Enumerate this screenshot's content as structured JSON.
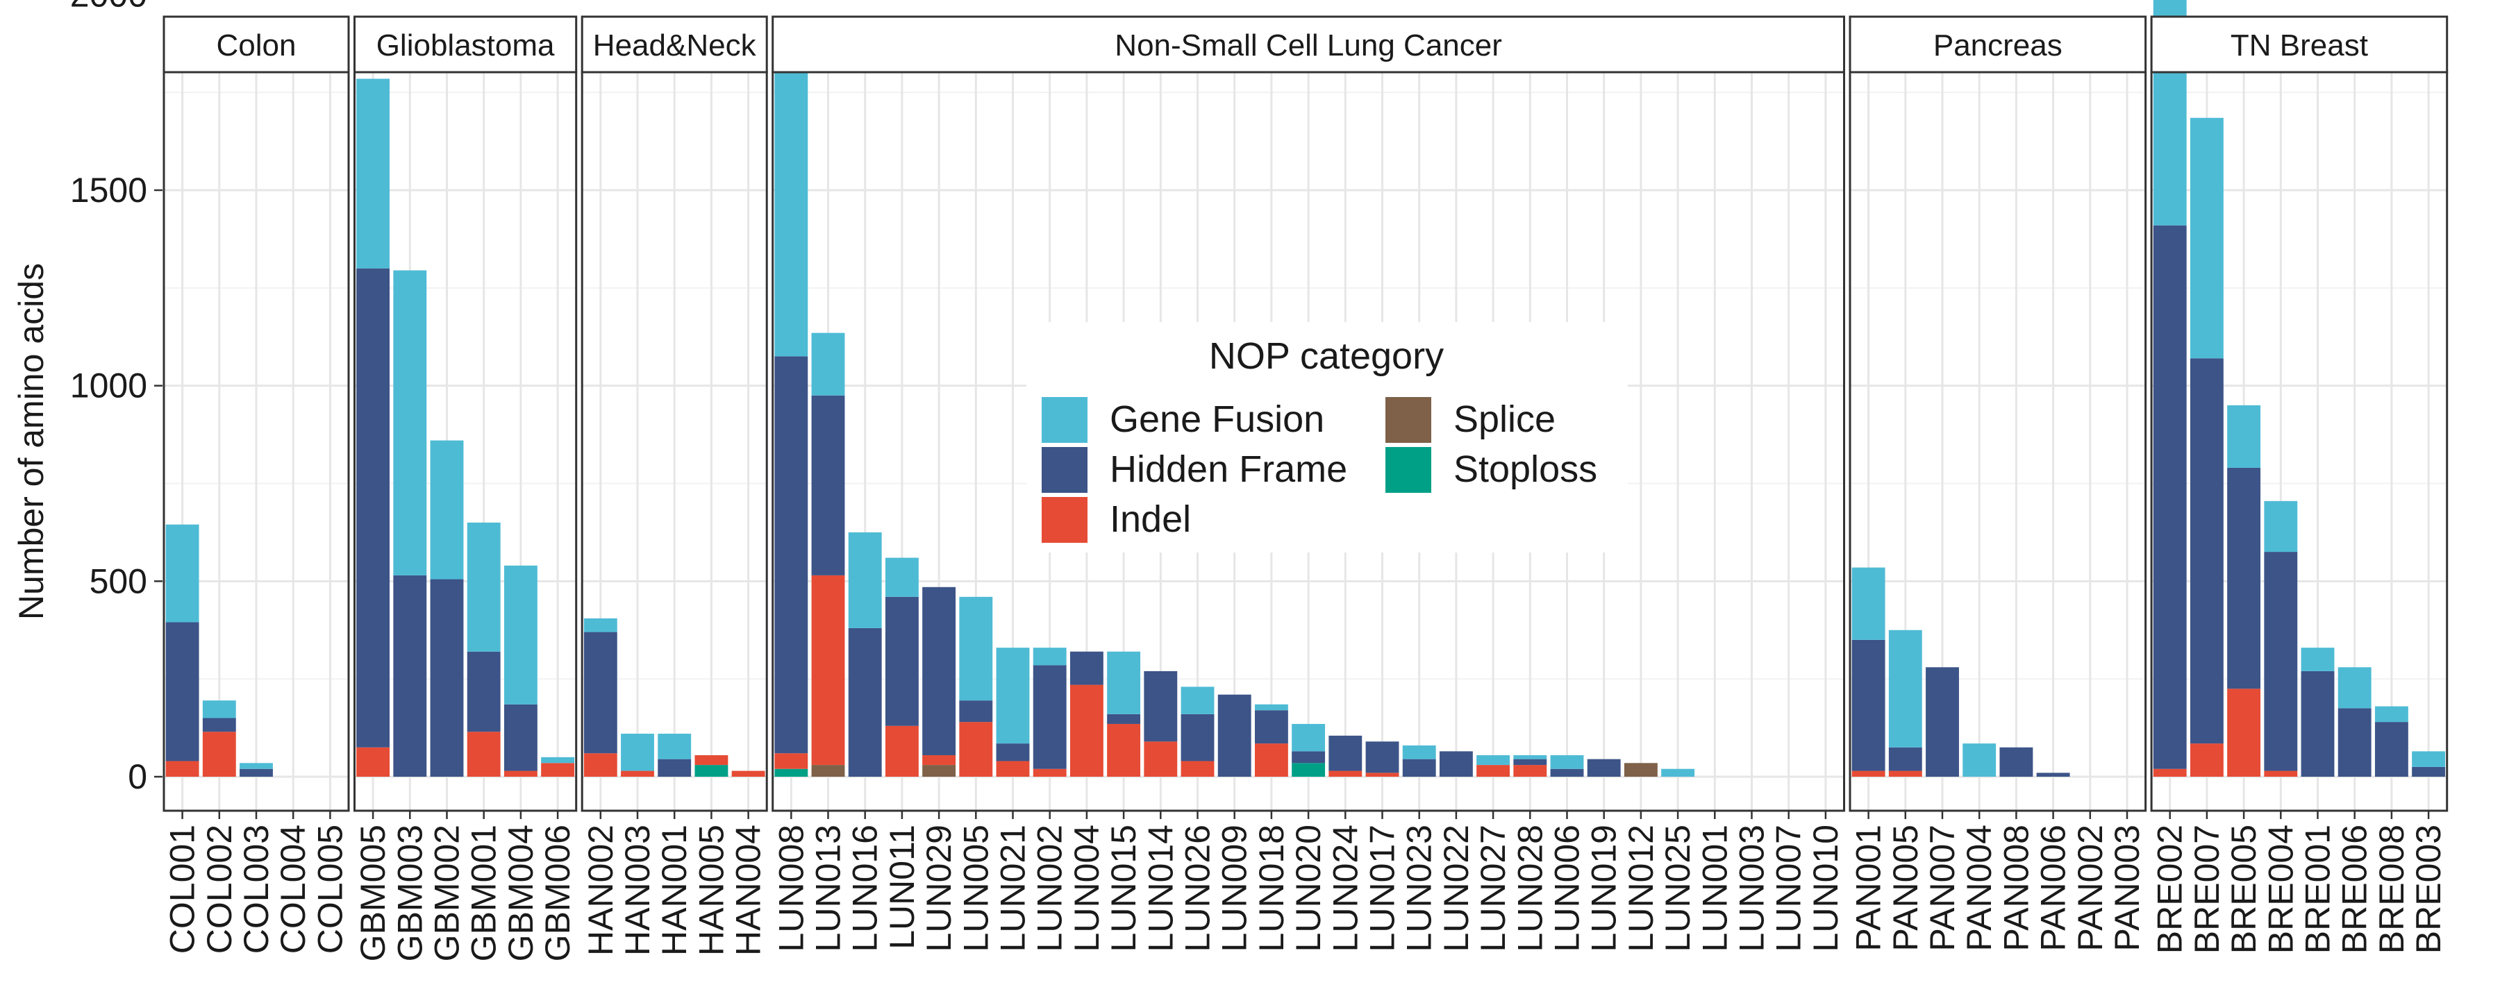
{
  "chart_data": {
    "type": "bar",
    "stacked": true,
    "faceted": true,
    "ylabel": "Number of amino acids",
    "xlabel": "",
    "ylim": [
      -100,
      2400
    ],
    "yticks": [
      0,
      500,
      1000,
      1500,
      2000
    ],
    "grid": true,
    "legend": {
      "title": "NOP category",
      "position": "top-center",
      "items": [
        {
          "key": "gene_fusion",
          "label": "Gene Fusion",
          "color": "#4EBBD5"
        },
        {
          "key": "hidden_frame",
          "label": "Hidden Frame",
          "color": "#3C5488"
        },
        {
          "key": "indel",
          "label": "Indel",
          "color": "#E64B35"
        },
        {
          "key": "splice",
          "label": "Splice",
          "color": "#7E6148"
        },
        {
          "key": "stoploss",
          "label": "Stoploss",
          "color": "#00A087"
        }
      ]
    },
    "facets": [
      {
        "name": "Colon",
        "categories": [
          "COL001",
          "COL002",
          "COL003",
          "COL004",
          "COL005"
        ],
        "series": {
          "indel": [
            40,
            115,
            0,
            0,
            0
          ],
          "hidden_frame": [
            355,
            35,
            20,
            0,
            0
          ],
          "gene_fusion": [
            250,
            45,
            15,
            0,
            0
          ],
          "splice": [
            0,
            0,
            0,
            0,
            0
          ],
          "stoploss": [
            0,
            0,
            0,
            0,
            0
          ]
        }
      },
      {
        "name": "Glioblastoma",
        "categories": [
          "GBM005",
          "GBM003",
          "GBM002",
          "GBM001",
          "GBM004",
          "GBM006"
        ],
        "series": {
          "indel": [
            75,
            0,
            0,
            115,
            15,
            35
          ],
          "hidden_frame": [
            1225,
            515,
            505,
            205,
            170,
            0
          ],
          "gene_fusion": [
            485,
            780,
            355,
            330,
            355,
            15
          ],
          "splice": [
            0,
            0,
            0,
            0,
            0,
            0
          ],
          "stoploss": [
            0,
            0,
            0,
            0,
            0,
            0
          ]
        }
      },
      {
        "name": "Head&Neck",
        "categories": [
          "HAN002",
          "HAN003",
          "HAN001",
          "HAN005",
          "HAN004"
        ],
        "series": {
          "indel": [
            60,
            15,
            0,
            25,
            15
          ],
          "hidden_frame": [
            310,
            0,
            45,
            0,
            0
          ],
          "gene_fusion": [
            35,
            95,
            65,
            0,
            0
          ],
          "splice": [
            0,
            0,
            0,
            0,
            0
          ],
          "stoploss": [
            0,
            0,
            0,
            30,
            0
          ]
        }
      },
      {
        "name": "Non-Small Cell Lung Cancer",
        "categories": [
          "LUN008",
          "LUN013",
          "LUN016",
          "LUN011",
          "LUN029",
          "LUN005",
          "LUN021",
          "LUN002",
          "LUN004",
          "LUN015",
          "LUN014",
          "LUN026",
          "LUN009",
          "LUN018",
          "LUN020",
          "LUN024",
          "LUN017",
          "LUN023",
          "LUN022",
          "LUN027",
          "LUN028",
          "LUN006",
          "LUN019",
          "LUN012",
          "LUN025",
          "LUN001",
          "LUN003",
          "LUN007",
          "LUN010"
        ],
        "series": {
          "indel": [
            40,
            485,
            0,
            130,
            25,
            140,
            40,
            20,
            235,
            135,
            90,
            40,
            0,
            85,
            0,
            15,
            10,
            0,
            0,
            30,
            30,
            0,
            0,
            0,
            0,
            0,
            0,
            0,
            0
          ],
          "hidden_frame": [
            1015,
            460,
            380,
            330,
            430,
            55,
            45,
            265,
            85,
            25,
            180,
            120,
            210,
            85,
            30,
            90,
            80,
            45,
            65,
            0,
            15,
            20,
            45,
            0,
            0,
            0,
            0,
            0,
            0
          ],
          "gene_fusion": [
            845,
            160,
            245,
            100,
            0,
            265,
            245,
            45,
            0,
            160,
            0,
            70,
            0,
            15,
            70,
            0,
            0,
            35,
            0,
            25,
            10,
            35,
            0,
            0,
            20,
            0,
            0,
            0,
            0
          ],
          "splice": [
            0,
            30,
            0,
            0,
            30,
            0,
            0,
            0,
            0,
            0,
            0,
            0,
            0,
            0,
            0,
            0,
            0,
            0,
            0,
            0,
            0,
            0,
            0,
            35,
            0,
            0,
            0,
            0,
            0
          ],
          "stoploss": [
            20,
            0,
            0,
            0,
            0,
            0,
            0,
            0,
            0,
            0,
            0,
            0,
            0,
            0,
            35,
            0,
            0,
            0,
            0,
            0,
            0,
            0,
            0,
            0,
            0,
            0,
            0,
            0,
            0
          ]
        }
      },
      {
        "name": "Pancreas",
        "categories": [
          "PAN001",
          "PAN005",
          "PAN007",
          "PAN004",
          "PAN008",
          "PAN006",
          "PAN002",
          "PAN003"
        ],
        "series": {
          "indel": [
            15,
            15,
            0,
            0,
            0,
            0,
            0,
            0
          ],
          "hidden_frame": [
            335,
            60,
            280,
            0,
            75,
            10,
            0,
            0
          ],
          "gene_fusion": [
            185,
            300,
            0,
            85,
            0,
            0,
            0,
            0
          ],
          "splice": [
            0,
            0,
            0,
            0,
            0,
            0,
            0,
            0
          ],
          "stoploss": [
            0,
            0,
            0,
            0,
            0,
            0,
            0,
            0
          ]
        }
      },
      {
        "name": "TN Breast",
        "categories": [
          "BRE002",
          "BRE007",
          "BRE005",
          "BRE004",
          "BRE001",
          "BRE006",
          "BRE008",
          "BRE003"
        ],
        "series": {
          "indel": [
            20,
            85,
            225,
            15,
            0,
            0,
            0,
            0
          ],
          "hidden_frame": [
            1390,
            985,
            565,
            560,
            270,
            175,
            140,
            25
          ],
          "gene_fusion": [
            880,
            615,
            160,
            130,
            60,
            105,
            40,
            40
          ],
          "splice": [
            0,
            0,
            0,
            0,
            0,
            0,
            0,
            0
          ],
          "stoploss": [
            0,
            0,
            0,
            0,
            0,
            0,
            0,
            0
          ]
        }
      }
    ]
  }
}
